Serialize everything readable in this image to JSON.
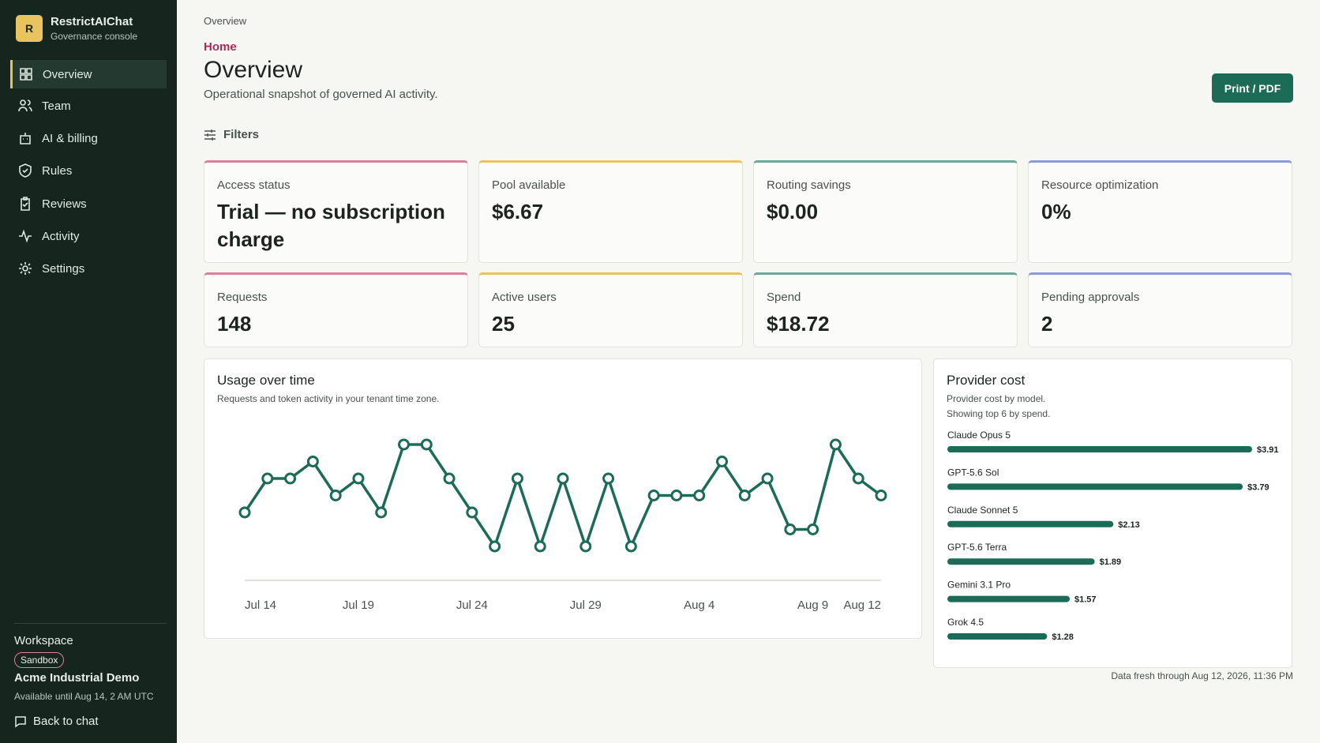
{
  "sidebar": {
    "brand": {
      "initial": "R",
      "name": "RestrictAIChat",
      "subtitle": "Governance console"
    },
    "nav": [
      "Overview",
      "Team",
      "AI & billing",
      "Rules",
      "Reviews",
      "Activity",
      "Settings"
    ],
    "workspace": {
      "label": "Workspace",
      "badge": "Sandbox",
      "name": "Acme Industrial Demo",
      "availability": "Available until Aug 14, 2 AM UTC"
    },
    "back": "Back to chat"
  },
  "header": {
    "breadcrumb": "Overview",
    "section": "Home",
    "title": "Overview",
    "subtitle": "Operational snapshot of governed AI activity.",
    "button": "Print / PDF",
    "filters": "Filters"
  },
  "cards": [
    {
      "label": "Access status",
      "value": "Trial — no subscription charge"
    },
    {
      "label": "Pool available",
      "value": "$6.67"
    },
    {
      "label": "Routing savings",
      "value": "$0.00"
    },
    {
      "label": "Resource optimization",
      "value": "0%"
    },
    {
      "label": "Requests",
      "value": "148"
    },
    {
      "label": "Active users",
      "value": "25"
    },
    {
      "label": "Spend",
      "value": "$18.72"
    },
    {
      "label": "Pending approvals",
      "value": "2"
    }
  ],
  "chart_data": [
    {
      "type": "line",
      "title": "Usage over time",
      "subtitle": "Requests and token activity in your tenant time zone.",
      "color": "#1c6b57",
      "categories": [
        "Jul 14",
        null,
        null,
        null,
        null,
        "Jul 19",
        null,
        null,
        null,
        null,
        "Jul 24",
        null,
        null,
        null,
        null,
        "Jul 29",
        null,
        null,
        null,
        null,
        "Aug 4",
        null,
        null,
        null,
        null,
        "Aug 9",
        null,
        null,
        "Aug 12"
      ],
      "values": [
        4,
        6,
        6,
        7,
        5,
        6,
        4,
        8,
        8,
        6,
        4,
        2,
        6,
        2,
        6,
        2,
        6,
        2,
        5,
        5,
        5,
        7,
        5,
        6,
        3,
        3,
        8,
        6,
        5
      ],
      "ylim": [
        0,
        8
      ]
    },
    {
      "type": "bar",
      "title": "Provider cost",
      "subtitle": "Provider cost by model.",
      "note": "Showing top 6 by spend.",
      "color": "#1c6b57",
      "categories": [
        "Claude Opus 5",
        "GPT-5.6 Sol",
        "Claude Sonnet 5",
        "GPT-5.6 Terra",
        "Gemini 3.1 Pro",
        "Grok 4.5"
      ],
      "values": [
        3.91,
        3.79,
        2.13,
        1.89,
        1.57,
        1.28
      ],
      "value_labels": [
        "$3.91",
        "$3.79",
        "$2.13",
        "$1.89",
        "$1.57",
        "$1.28"
      ]
    }
  ],
  "footer": "Data fresh through Aug 12, 2026, 11:36 PM"
}
